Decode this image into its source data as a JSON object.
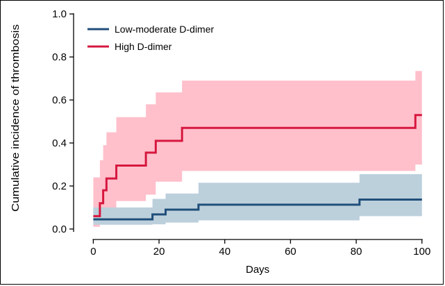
{
  "chart_data": {
    "type": "step",
    "title": "",
    "xlabel": "Days",
    "ylabel": "Cumulative incidence of thrombosis",
    "xlim": [
      -6,
      103
    ],
    "ylim": [
      -0.01,
      1.01
    ],
    "x_ticks": [
      0,
      20,
      40,
      60,
      80,
      100
    ],
    "y_ticks": [
      0.0,
      0.2,
      0.4,
      0.6,
      0.8,
      1.0
    ],
    "y_tick_labels": [
      "0.0",
      "0.2",
      "0.4",
      "0.6",
      "0.8",
      "1.0"
    ],
    "grid": false,
    "legend_position": "top-left",
    "series": [
      {
        "name": "Low-moderate D-dimer",
        "color": "#1f4e79",
        "band_color": "#bcd0dc",
        "x": [
          0,
          18,
          22,
          32,
          81,
          100
        ],
        "y": [
          0.045,
          0.068,
          0.09,
          0.113,
          0.137,
          0.137
        ],
        "lower": [
          0.02,
          0.022,
          0.03,
          0.04,
          0.06,
          0.06
        ],
        "upper": [
          0.1,
          0.14,
          0.165,
          0.215,
          0.255,
          0.26
        ]
      },
      {
        "name": "High D-dimer",
        "color": "#d6173f",
        "band_color": "#ffc0cb",
        "x": [
          0,
          2,
          3,
          4,
          7,
          16,
          19,
          27,
          98,
          100
        ],
        "y": [
          0.06,
          0.12,
          0.18,
          0.235,
          0.295,
          0.355,
          0.41,
          0.47,
          0.53,
          0.53
        ],
        "lower": [
          0.01,
          0.04,
          0.06,
          0.09,
          0.13,
          0.16,
          0.22,
          0.27,
          0.3,
          0.3
        ],
        "upper": [
          0.24,
          0.32,
          0.39,
          0.45,
          0.52,
          0.58,
          0.635,
          0.69,
          0.735,
          0.735
        ]
      }
    ]
  }
}
